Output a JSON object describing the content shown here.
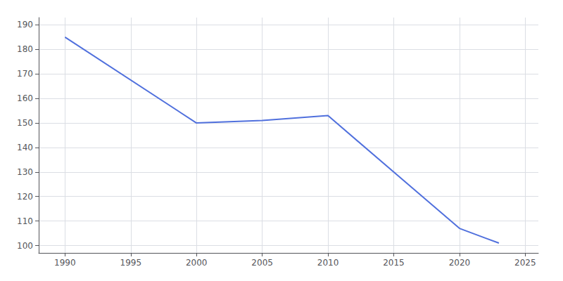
{
  "chart_data": {
    "type": "line",
    "x": [
      1990,
      2000,
      2005,
      2010,
      2020,
      2022,
      2023
    ],
    "values": [
      185,
      150,
      151,
      153,
      107,
      103,
      101
    ],
    "xlim": [
      1988,
      2026
    ],
    "xticks": [
      1990,
      1995,
      2000,
      2005,
      2010,
      2015,
      2020,
      2025
    ],
    "ylim": [
      97,
      193
    ],
    "yticks": [
      100,
      110,
      120,
      130,
      140,
      150,
      160,
      170,
      180,
      190
    ],
    "grid": true
  }
}
